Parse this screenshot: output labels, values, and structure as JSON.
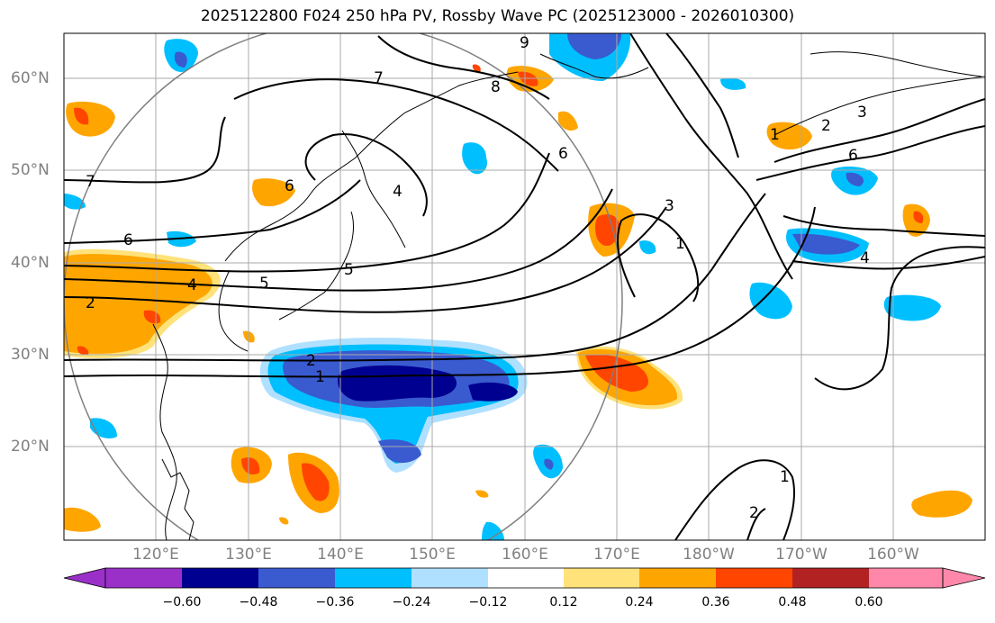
{
  "title": "2025122800 F024 250 hPa PV, Rossby Wave PC (2025123000 - 2026010300)",
  "lat_labels": [
    "60°N",
    "50°N",
    "40°N",
    "30°N",
    "20°N"
  ],
  "lon_labels": [
    "120°E",
    "130°E",
    "140°E",
    "150°E",
    "160°E",
    "170°E",
    "180°W",
    "170°W",
    "160°W"
  ],
  "colorbar": {
    "ticks": [
      "−0.60",
      "−0.48",
      "−0.36",
      "−0.24",
      "−0.12",
      "0.12",
      "0.24",
      "0.36",
      "0.48",
      "0.60"
    ],
    "colors": [
      "#9a30c8",
      "#000090",
      "#3a5ad0",
      "#00bfff",
      "#b0e0ff",
      "#ffffff",
      "#ffe27a",
      "#ffa500",
      "#ff4500",
      "#b22222",
      "#ff88aa"
    ]
  },
  "contour_labels": [
    "9",
    "8",
    "7",
    "7",
    "6",
    "6",
    "5",
    "5",
    "4",
    "4",
    "4",
    "3",
    "3",
    "2",
    "2",
    "2",
    "2",
    "1",
    "1",
    "1",
    "1",
    "6",
    "6"
  ],
  "colors": {
    "grid": "#aaaaaa",
    "contour": "#000000",
    "coast": "#000000",
    "circle": "#808080"
  }
}
